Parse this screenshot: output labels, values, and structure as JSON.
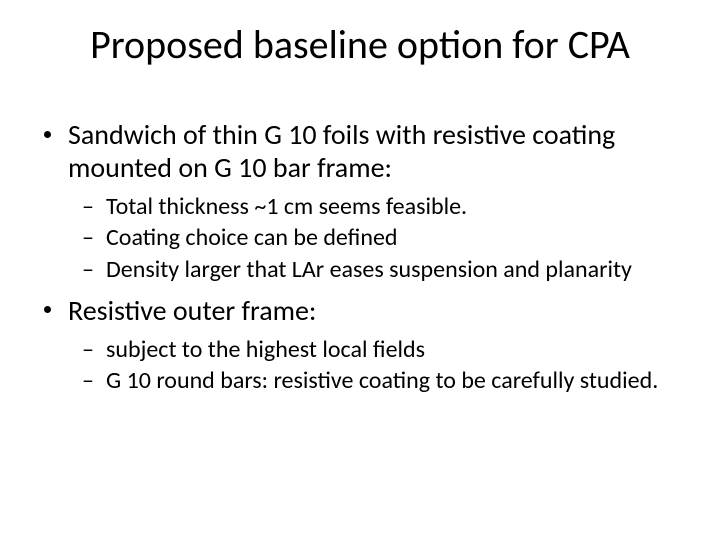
{
  "title": "Proposed baseline option for CPA",
  "items": [
    {
      "text": "Sandwich of thin G 10 foils with resistive coating mounted on G 10 bar frame:",
      "sub": [
        "Total thickness ~1 cm seems feasible.",
        "Coating choice can be defined",
        "Density larger that LAr eases suspension and planarity"
      ]
    },
    {
      "text": "Resistive outer frame:",
      "sub": [
        "subject to the highest local fields",
        "G 10 round bars: resistive coating to be carefully studied."
      ]
    }
  ],
  "colors": {
    "background": "#ffffff",
    "text": "#000000"
  },
  "typography": {
    "title_fontsize": 40,
    "lvl1_fontsize": 28,
    "lvl2_fontsize": 24,
    "font_family": "Calibri"
  }
}
